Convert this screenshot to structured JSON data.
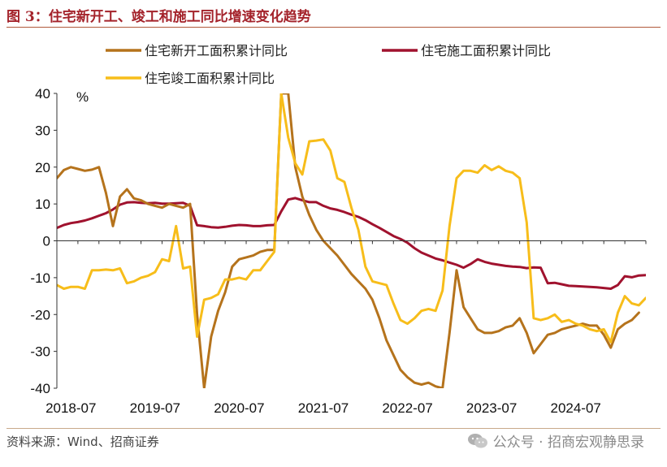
{
  "figure": {
    "title": "图 3：住宅新开工、竣工和施工同比增速变化趋势",
    "source": "资料来源：Wind、招商证券",
    "watermark": "公众号 · 招商宏观静思录"
  },
  "chart_data": {
    "type": "line",
    "title": "图 3：住宅新开工、竣工和施工同比增速变化趋势",
    "ylabel": "%",
    "xlabel": "",
    "ylim": [
      -40,
      40
    ],
    "yticks": [
      40,
      30,
      20,
      10,
      0,
      -10,
      -20,
      -30,
      -40
    ],
    "xlim": [
      "2018-05",
      "2025-05"
    ],
    "xticks": [
      "2018-07",
      "2019-07",
      "2020-07",
      "2021-07",
      "2022-07",
      "2023-07",
      "2024-07"
    ],
    "legend_position": "top",
    "grid": false,
    "colors": {
      "新开工": "#b5731c",
      "施工": "#a0122e",
      "竣工": "#f7bd1a",
      "axis": "#333333",
      "title": "#a4232b"
    },
    "series": [
      {
        "name": "住宅新开工面积累计同比",
        "key": "新开工",
        "points": [
          [
            "2018-05",
            17
          ],
          [
            "2018-06",
            19.2
          ],
          [
            "2018-07",
            20
          ],
          [
            "2018-08",
            19.5
          ],
          [
            "2018-09",
            19
          ],
          [
            "2018-10",
            19.3
          ],
          [
            "2018-11",
            20
          ],
          [
            "2018-12",
            13
          ],
          [
            "2019-01",
            4
          ],
          [
            "2019-02",
            12
          ],
          [
            "2019-03",
            14
          ],
          [
            "2019-04",
            11.5
          ],
          [
            "2019-05",
            11
          ],
          [
            "2019-06",
            10
          ],
          [
            "2019-07",
            9.5
          ],
          [
            "2019-08",
            9
          ],
          [
            "2019-09",
            10
          ],
          [
            "2019-10",
            9.5
          ],
          [
            "2019-11",
            9
          ],
          [
            "2019-12",
            10
          ],
          [
            "2020-01",
            -20
          ],
          [
            "2020-02",
            -40
          ],
          [
            "2020-03",
            -26
          ],
          [
            "2020-04",
            -19
          ],
          [
            "2020-05",
            -14
          ],
          [
            "2020-06",
            -7
          ],
          [
            "2020-07",
            -5
          ],
          [
            "2020-08",
            -4.5
          ],
          [
            "2020-09",
            -4
          ],
          [
            "2020-10",
            -3
          ],
          [
            "2020-11",
            -2.5
          ],
          [
            "2020-12",
            -2.5
          ],
          [
            "2021-01",
            40
          ],
          [
            "2021-02",
            40
          ],
          [
            "2021-03",
            20
          ],
          [
            "2021-04",
            12
          ],
          [
            "2021-05",
            7
          ],
          [
            "2021-06",
            3
          ],
          [
            "2021-07",
            0
          ],
          [
            "2021-08",
            -2
          ],
          [
            "2021-09",
            -4
          ],
          [
            "2021-10",
            -6.5
          ],
          [
            "2021-11",
            -9
          ],
          [
            "2021-12",
            -11
          ],
          [
            "2022-01",
            -13
          ],
          [
            "2022-02",
            -16
          ],
          [
            "2022-03",
            -21
          ],
          [
            "2022-04",
            -27
          ],
          [
            "2022-05",
            -31
          ],
          [
            "2022-06",
            -35
          ],
          [
            "2022-07",
            -37
          ],
          [
            "2022-08",
            -38.5
          ],
          [
            "2022-09",
            -39
          ],
          [
            "2022-10",
            -38.5
          ],
          [
            "2022-11",
            -39.5
          ],
          [
            "2022-12",
            -40
          ],
          [
            "2023-01",
            -25
          ],
          [
            "2023-02",
            -8
          ],
          [
            "2023-03",
            -18
          ],
          [
            "2023-04",
            -21
          ],
          [
            "2023-05",
            -24
          ],
          [
            "2023-06",
            -25
          ],
          [
            "2023-07",
            -25
          ],
          [
            "2023-08",
            -24.5
          ],
          [
            "2023-09",
            -23.5
          ],
          [
            "2023-10",
            -23
          ],
          [
            "2023-11",
            -21
          ],
          [
            "2023-12",
            -25
          ],
          [
            "2024-01",
            -30.5
          ],
          [
            "2024-02",
            -28
          ],
          [
            "2024-03",
            -25.5
          ],
          [
            "2024-04",
            -25
          ],
          [
            "2024-05",
            -24
          ],
          [
            "2024-06",
            -23.5
          ],
          [
            "2024-07",
            -23
          ],
          [
            "2024-08",
            -22.5
          ],
          [
            "2024-09",
            -23
          ],
          [
            "2024-10",
            -23
          ],
          [
            "2024-11",
            -25.5
          ],
          [
            "2024-12",
            -29
          ],
          [
            "2025-01",
            -24
          ],
          [
            "2025-02",
            -22.5
          ],
          [
            "2025-03",
            -21.5
          ],
          [
            "2025-04",
            -19.5
          ]
        ]
      },
      {
        "name": "住宅施工面积累计同比",
        "key": "施工",
        "points": [
          [
            "2018-05",
            3.5
          ],
          [
            "2018-06",
            4.3
          ],
          [
            "2018-07",
            4.8
          ],
          [
            "2018-08",
            5.1
          ],
          [
            "2018-09",
            5.5
          ],
          [
            "2018-10",
            6.1
          ],
          [
            "2018-11",
            6.8
          ],
          [
            "2018-12",
            7.5
          ],
          [
            "2019-01",
            8.5
          ],
          [
            "2019-02",
            9.8
          ],
          [
            "2019-03",
            10.4
          ],
          [
            "2019-04",
            10.5
          ],
          [
            "2019-05",
            10.3
          ],
          [
            "2019-06",
            10.2
          ],
          [
            "2019-07",
            10.3
          ],
          [
            "2019-08",
            10.1
          ],
          [
            "2019-09",
            10.1
          ],
          [
            "2019-10",
            10.2
          ],
          [
            "2019-11",
            10.3
          ],
          [
            "2019-12",
            9.5
          ],
          [
            "2020-01",
            4.2
          ],
          [
            "2020-02",
            4
          ],
          [
            "2020-03",
            3.7
          ],
          [
            "2020-04",
            3.6
          ],
          [
            "2020-05",
            3.8
          ],
          [
            "2020-06",
            4.1
          ],
          [
            "2020-07",
            4.3
          ],
          [
            "2020-08",
            4.2
          ],
          [
            "2020-09",
            4
          ],
          [
            "2020-10",
            4
          ],
          [
            "2020-11",
            4.2
          ],
          [
            "2020-12",
            4.3
          ],
          [
            "2021-01",
            8
          ],
          [
            "2021-02",
            11.2
          ],
          [
            "2021-03",
            11.6
          ],
          [
            "2021-04",
            11
          ],
          [
            "2021-05",
            10.5
          ],
          [
            "2021-06",
            10.5
          ],
          [
            "2021-07",
            9.5
          ],
          [
            "2021-08",
            8.8
          ],
          [
            "2021-09",
            8.4
          ],
          [
            "2021-10",
            7.8
          ],
          [
            "2021-11",
            7.1
          ],
          [
            "2021-12",
            6.5
          ],
          [
            "2022-01",
            5.6
          ],
          [
            "2022-02",
            4.5
          ],
          [
            "2022-03",
            3.5
          ],
          [
            "2022-04",
            2.4
          ],
          [
            "2022-05",
            1.3
          ],
          [
            "2022-06",
            0.5
          ],
          [
            "2022-07",
            -0.5
          ],
          [
            "2022-08",
            -2
          ],
          [
            "2022-09",
            -3.2
          ],
          [
            "2022-10",
            -4
          ],
          [
            "2022-11",
            -4.8
          ],
          [
            "2022-12",
            -5.3
          ],
          [
            "2023-01",
            -5.9
          ],
          [
            "2023-02",
            -6.5
          ],
          [
            "2023-03",
            -7.3
          ],
          [
            "2023-04",
            -6.3
          ],
          [
            "2023-05",
            -5
          ],
          [
            "2023-06",
            -5.7
          ],
          [
            "2023-07",
            -6.2
          ],
          [
            "2023-08",
            -6.5
          ],
          [
            "2023-09",
            -6.8
          ],
          [
            "2023-10",
            -7
          ],
          [
            "2023-11",
            -7.1
          ],
          [
            "2023-12",
            -7.4
          ],
          [
            "2024-01",
            -7.2
          ],
          [
            "2024-02",
            -7.3
          ],
          [
            "2024-03",
            -11.5
          ],
          [
            "2024-04",
            -11.4
          ],
          [
            "2024-05",
            -11.8
          ],
          [
            "2024-06",
            -12.2
          ],
          [
            "2024-07",
            -12.3
          ],
          [
            "2024-08",
            -12.4
          ],
          [
            "2024-09",
            -12.5
          ],
          [
            "2024-10",
            -12.6
          ],
          [
            "2024-11",
            -12.8
          ],
          [
            "2024-12",
            -13
          ],
          [
            "2025-01",
            -12
          ],
          [
            "2025-02",
            -9.6
          ],
          [
            "2025-03",
            -9.9
          ],
          [
            "2025-04",
            -9.4
          ],
          [
            "2025-05",
            -9.3
          ]
        ]
      },
      {
        "name": "住宅竣工面积累计同比",
        "key": "竣工",
        "points": [
          [
            "2018-05",
            -12
          ],
          [
            "2018-06",
            -13
          ],
          [
            "2018-07",
            -12.5
          ],
          [
            "2018-08",
            -12.5
          ],
          [
            "2018-09",
            -13
          ],
          [
            "2018-10",
            -8
          ],
          [
            "2018-11",
            -8
          ],
          [
            "2018-12",
            -7.8
          ],
          [
            "2019-01",
            -8
          ],
          [
            "2019-02",
            -7.5
          ],
          [
            "2019-03",
            -11.5
          ],
          [
            "2019-04",
            -11
          ],
          [
            "2019-05",
            -10
          ],
          [
            "2019-06",
            -9.5
          ],
          [
            "2019-07",
            -8.5
          ],
          [
            "2019-08",
            -5
          ],
          [
            "2019-09",
            -5.5
          ],
          [
            "2019-10",
            4
          ],
          [
            "2019-11",
            -7.5
          ],
          [
            "2019-12",
            -7
          ],
          [
            "2020-01",
            -26
          ],
          [
            "2020-02",
            -16
          ],
          [
            "2020-03",
            -15.5
          ],
          [
            "2020-04",
            -14.5
          ],
          [
            "2020-05",
            -10.5
          ],
          [
            "2020-06",
            -10.5
          ],
          [
            "2020-07",
            -10
          ],
          [
            "2020-08",
            -10.5
          ],
          [
            "2020-09",
            -8
          ],
          [
            "2020-10",
            -8
          ],
          [
            "2020-11",
            -5.5
          ],
          [
            "2020-12",
            -3
          ],
          [
            "2021-01",
            40
          ],
          [
            "2021-02",
            28
          ],
          [
            "2021-03",
            21
          ],
          [
            "2021-04",
            18
          ],
          [
            "2021-05",
            27
          ],
          [
            "2021-06",
            27.2
          ],
          [
            "2021-07",
            27.5
          ],
          [
            "2021-08",
            24.5
          ],
          [
            "2021-09",
            17
          ],
          [
            "2021-10",
            16
          ],
          [
            "2021-11",
            9
          ],
          [
            "2021-12",
            3
          ],
          [
            "2022-01",
            -7
          ],
          [
            "2022-02",
            -11
          ],
          [
            "2022-03",
            -11.5
          ],
          [
            "2022-04",
            -12
          ],
          [
            "2022-05",
            -17
          ],
          [
            "2022-06",
            -21.5
          ],
          [
            "2022-07",
            -22.5
          ],
          [
            "2022-08",
            -21
          ],
          [
            "2022-09",
            -19
          ],
          [
            "2022-10",
            -18.5
          ],
          [
            "2022-11",
            -19
          ],
          [
            "2022-12",
            -13.5
          ],
          [
            "2023-01",
            4
          ],
          [
            "2023-02",
            17
          ],
          [
            "2023-03",
            19
          ],
          [
            "2023-04",
            19
          ],
          [
            "2023-05",
            18.5
          ],
          [
            "2023-06",
            20.5
          ],
          [
            "2023-07",
            19.2
          ],
          [
            "2023-08",
            20.2
          ],
          [
            "2023-09",
            19
          ],
          [
            "2023-10",
            18.5
          ],
          [
            "2023-11",
            17
          ],
          [
            "2023-12",
            5
          ],
          [
            "2024-01",
            -21
          ],
          [
            "2024-02",
            -21.5
          ],
          [
            "2024-03",
            -21
          ],
          [
            "2024-04",
            -20
          ],
          [
            "2024-05",
            -22
          ],
          [
            "2024-06",
            -21.5
          ],
          [
            "2024-07",
            -22.5
          ],
          [
            "2024-08",
            -23
          ],
          [
            "2024-09",
            -24
          ],
          [
            "2024-10",
            -24.5
          ],
          [
            "2024-11",
            -24
          ],
          [
            "2024-12",
            -27.5
          ],
          [
            "2025-01",
            -19.5
          ],
          [
            "2025-02",
            -15
          ],
          [
            "2025-03",
            -17
          ],
          [
            "2025-04",
            -17.5
          ],
          [
            "2025-05",
            -15.5
          ]
        ]
      }
    ]
  }
}
